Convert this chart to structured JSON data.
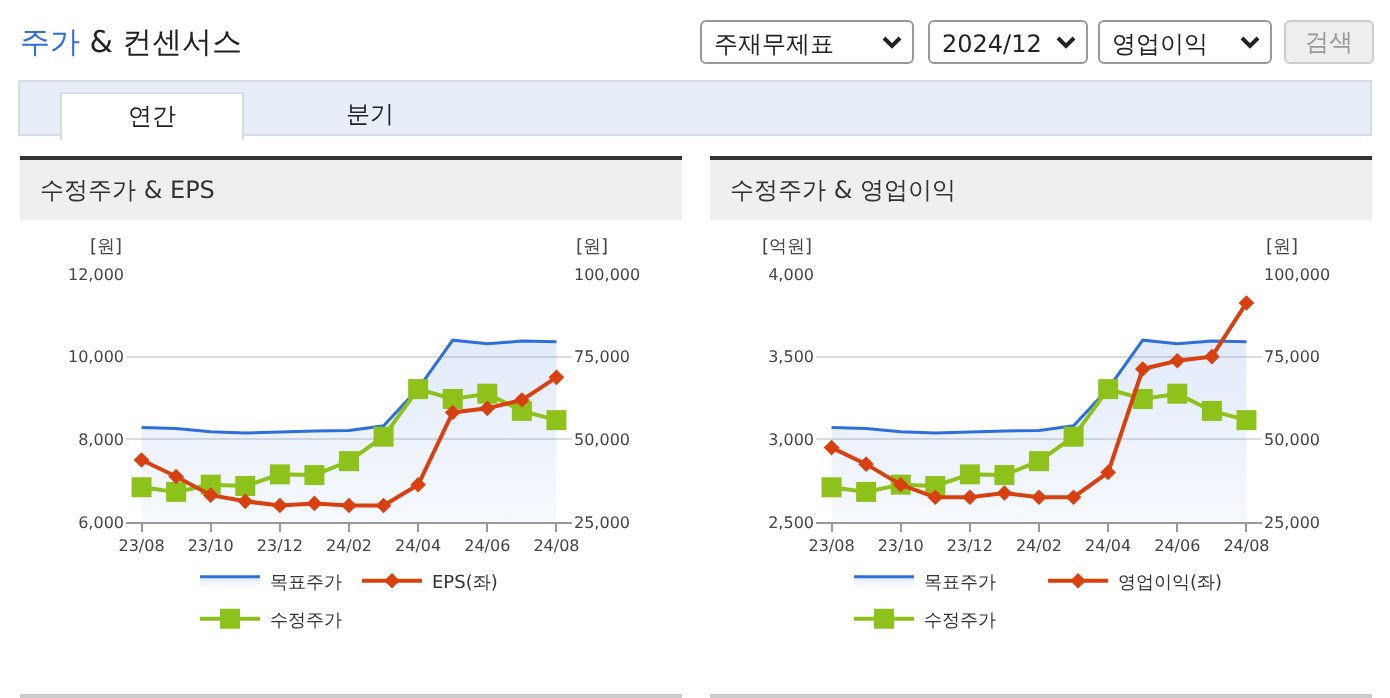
{
  "chart_data": [
    {
      "type": "other",
      "title": "주가 & 컨센서스",
      "annotations": [
        "주재무제표",
        "2024/12",
        "영업이익",
        "검색",
        "연간",
        "분기"
      ]
    },
    {
      "type": "line",
      "title": "수정주가 & EPS",
      "ylabel": "[원]",
      "y2label": "[원]",
      "categories": [
        "23/08",
        null,
        "23/10",
        null,
        "23/12",
        null,
        "24/02",
        null,
        "24/04",
        null,
        "24/06",
        null,
        "24/08"
      ],
      "series": [
        {
          "name": "목표주가",
          "type": "area",
          "axis": "y2",
          "color": "#2f6fdb",
          "marker": "none",
          "values": [
            53600,
            53300,
            52300,
            51900,
            52200,
            52500,
            52700,
            54100,
            65300,
            80000,
            78900,
            79700,
            79500
          ]
        },
        {
          "name": "EPS(좌)",
          "type": "line",
          "color": "#d9400f",
          "marker": "diamond",
          "values": [
            7500,
            7100,
            6650,
            6500,
            6400,
            6450,
            6400,
            6400,
            6900,
            8650,
            8750,
            8950,
            9500
          ]
        },
        {
          "name": "수정주가",
          "type": "line",
          "axis": "y2",
          "color": "#8cc21a",
          "marker": "square",
          "values": [
            35500,
            34100,
            36300,
            35900,
            39400,
            39200,
            43400,
            50800,
            65200,
            62200,
            63800,
            58600,
            55800
          ]
        }
      ],
      "ylim": [
        6000,
        12000
      ],
      "yticks": [
        {
          "value": 6000,
          "label": "6,000"
        },
        {
          "value": 8000,
          "label": "8,000"
        },
        {
          "value": 10000,
          "label": "10,000"
        },
        {
          "value": 12000,
          "label": "12,000"
        }
      ],
      "y2lim": [
        25000,
        100000
      ],
      "y2ticks": [
        {
          "value": 25000,
          "label": "25,000"
        },
        {
          "value": 50000,
          "label": "50,000"
        },
        {
          "value": 75000,
          "label": "75,000"
        },
        {
          "value": 100000,
          "label": "100,000"
        }
      ],
      "grid": "y",
      "legend": "bottom"
    },
    {
      "type": "line",
      "title": "수정주가 & 영업이익",
      "ylabel": "[억원]",
      "y2label": "[원]",
      "categories": [
        "23/08",
        null,
        "23/10",
        null,
        "23/12",
        null,
        "24/02",
        null,
        "24/04",
        null,
        "24/06",
        null,
        "24/08"
      ],
      "series": [
        {
          "name": "목표주가",
          "type": "area",
          "axis": "y2",
          "color": "#2f6fdb",
          "marker": "none",
          "values": [
            53600,
            53300,
            52300,
            51900,
            52200,
            52500,
            52700,
            54100,
            65300,
            80000,
            78900,
            79700,
            79500
          ]
        },
        {
          "name": "영업이익(좌)",
          "type": "line",
          "color": "#d9400f",
          "marker": "diamond",
          "values": [
            2950,
            2850,
            2725,
            2650,
            2650,
            2675,
            2650,
            2650,
            2800,
            3425,
            3475,
            3500,
            3825
          ]
        },
        {
          "name": "수정주가",
          "type": "line",
          "axis": "y2",
          "color": "#8cc21a",
          "marker": "square",
          "values": [
            35500,
            34100,
            36300,
            35900,
            39400,
            39200,
            43400,
            50800,
            65200,
            62200,
            63800,
            58600,
            55800
          ]
        }
      ],
      "ylim": [
        2500,
        4000
      ],
      "yticks": [
        {
          "value": 2500,
          "label": "2,500"
        },
        {
          "value": 3000,
          "label": "3,000"
        },
        {
          "value": 3500,
          "label": "3,500"
        },
        {
          "value": 4000,
          "label": "4,000"
        }
      ],
      "y2lim": [
        25000,
        100000
      ],
      "y2ticks": [
        {
          "value": 25000,
          "label": "25,000"
        },
        {
          "value": 50000,
          "label": "50,000"
        },
        {
          "value": 75000,
          "label": "75,000"
        },
        {
          "value": 100000,
          "label": "100,000"
        }
      ],
      "grid": "y",
      "legend": "bottom"
    }
  ]
}
